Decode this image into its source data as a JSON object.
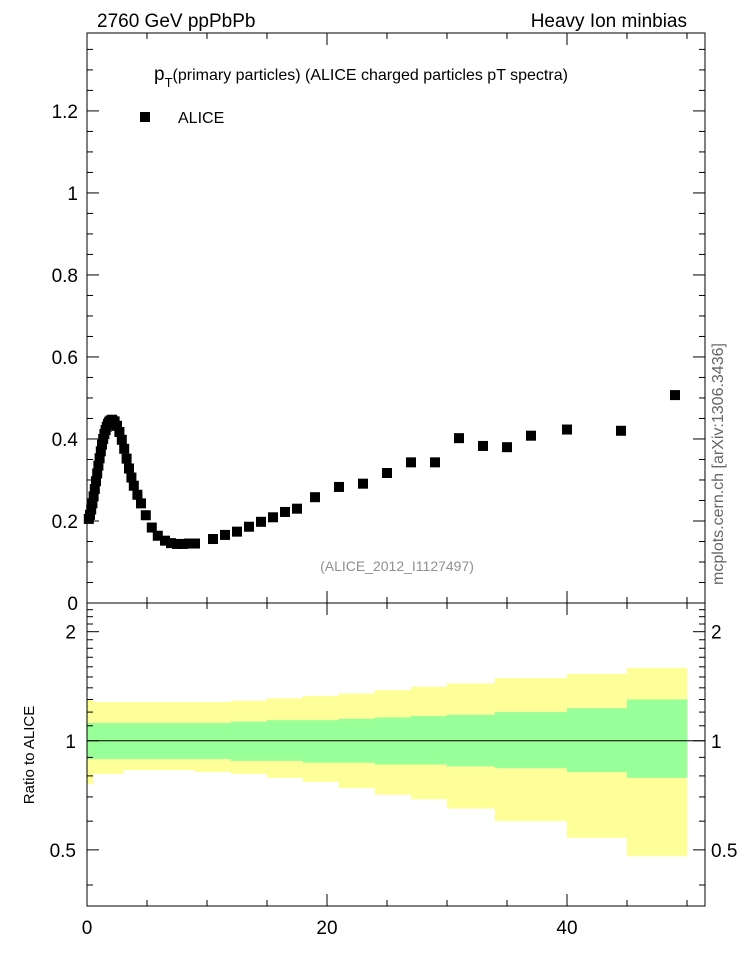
{
  "header": {
    "left": "2760 GeV ppPbPb",
    "right": "Heavy Ion minbias"
  },
  "side_label": "mcplots.cern.ch [arXiv:1306.3436]",
  "chart_data": [
    {
      "type": "scatter",
      "title_main": "p",
      "title_sub": "T",
      "title_rest": "(primary particles) (ALICE charged particles pT spectra)",
      "legend": [
        {
          "name": "ALICE",
          "marker": "square",
          "color": "#000000"
        }
      ],
      "legend_position": "top-left",
      "watermark": "(ALICE_2012_I1127497)",
      "xlim": [
        0,
        51.5
      ],
      "ylim": [
        0,
        1.39
      ],
      "y_ticks": [
        0.2,
        0.4,
        0.6,
        0.8,
        1,
        1.2
      ],
      "y_tick_labels": [
        "0.2",
        "0.4",
        "0.6",
        "0.8",
        "1",
        "1.2"
      ],
      "y_zero_label": "0",
      "series": [
        {
          "name": "ALICE",
          "points": [
            [
              0.15,
              0.205
            ],
            [
              0.25,
              0.215
            ],
            [
              0.35,
              0.228
            ],
            [
              0.45,
              0.243
            ],
            [
              0.55,
              0.26
            ],
            [
              0.65,
              0.278
            ],
            [
              0.75,
              0.297
            ],
            [
              0.85,
              0.316
            ],
            [
              0.95,
              0.335
            ],
            [
              1.05,
              0.353
            ],
            [
              1.15,
              0.37
            ],
            [
              1.25,
              0.386
            ],
            [
              1.35,
              0.4
            ],
            [
              1.45,
              0.412
            ],
            [
              1.55,
              0.422
            ],
            [
              1.65,
              0.43
            ],
            [
              1.75,
              0.437
            ],
            [
              1.85,
              0.442
            ],
            [
              1.95,
              0.445
            ],
            [
              2.1,
              0.447
            ],
            [
              2.3,
              0.443
            ],
            [
              2.5,
              0.432
            ],
            [
              2.7,
              0.417
            ],
            [
              2.9,
              0.398
            ],
            [
              3.1,
              0.376
            ],
            [
              3.3,
              0.352
            ],
            [
              3.5,
              0.328
            ],
            [
              3.7,
              0.306
            ],
            [
              3.9,
              0.286
            ],
            [
              4.2,
              0.264
            ],
            [
              4.5,
              0.243
            ],
            [
              4.9,
              0.214
            ],
            [
              5.4,
              0.184
            ],
            [
              5.9,
              0.164
            ],
            [
              6.5,
              0.152
            ],
            [
              7.0,
              0.146
            ],
            [
              7.5,
              0.144
            ],
            [
              8.0,
              0.144
            ],
            [
              8.5,
              0.145
            ],
            [
              9.0,
              0.145
            ],
            [
              10.5,
              0.156
            ],
            [
              11.5,
              0.166
            ],
            [
              12.5,
              0.174
            ],
            [
              13.5,
              0.186
            ],
            [
              14.5,
              0.198
            ],
            [
              15.5,
              0.209
            ],
            [
              16.5,
              0.222
            ],
            [
              17.5,
              0.23
            ],
            [
              19.0,
              0.258
            ],
            [
              21.0,
              0.283
            ],
            [
              23.0,
              0.291
            ],
            [
              25.0,
              0.317
            ],
            [
              27.0,
              0.343
            ],
            [
              29.0,
              0.343
            ],
            [
              31.0,
              0.402
            ],
            [
              33.0,
              0.383
            ],
            [
              35.0,
              0.38
            ],
            [
              37.0,
              0.408
            ],
            [
              40.0,
              0.423
            ],
            [
              44.5,
              0.42
            ],
            [
              49.0,
              0.507
            ]
          ]
        }
      ]
    },
    {
      "type": "area",
      "ylabel": "Ratio to ALICE",
      "xlim": [
        0,
        51.5
      ],
      "ylim": [
        0.35,
        2.4
      ],
      "x_ticks": [
        0,
        20,
        40
      ],
      "x_tick_labels": [
        "0",
        "20",
        "40"
      ],
      "y_ticks": [
        0.5,
        1,
        2
      ],
      "y_tick_labels": [
        "0.5",
        "1",
        "2"
      ],
      "reference_line": 1,
      "bands": [
        {
          "name": "outer-band",
          "color": "#ffff99",
          "bins": [
            [
              0,
              0.5,
              0.76,
              1.3
            ],
            [
              0.5,
              3,
              0.81,
              1.28
            ],
            [
              3,
              9,
              0.83,
              1.28
            ],
            [
              9,
              12,
              0.82,
              1.28
            ],
            [
              12,
              15,
              0.81,
              1.29
            ],
            [
              15,
              18,
              0.79,
              1.31
            ],
            [
              18,
              21,
              0.77,
              1.33
            ],
            [
              21,
              24,
              0.74,
              1.35
            ],
            [
              24,
              27,
              0.71,
              1.38
            ],
            [
              27,
              30,
              0.69,
              1.41
            ],
            [
              30,
              34,
              0.65,
              1.44
            ],
            [
              34,
              40,
              0.6,
              1.49
            ],
            [
              40,
              45,
              0.54,
              1.53
            ],
            [
              45,
              50,
              0.48,
              1.59
            ]
          ]
        },
        {
          "name": "inner-band",
          "color": "#99ff99",
          "bins": [
            [
              0,
              0.5,
              0.89,
              1.12
            ],
            [
              0.5,
              3,
              0.89,
              1.12
            ],
            [
              3,
              9,
              0.89,
              1.12
            ],
            [
              9,
              12,
              0.89,
              1.12
            ],
            [
              12,
              15,
              0.88,
              1.13
            ],
            [
              15,
              18,
              0.88,
              1.14
            ],
            [
              18,
              21,
              0.87,
              1.14
            ],
            [
              21,
              24,
              0.87,
              1.15
            ],
            [
              24,
              27,
              0.86,
              1.16
            ],
            [
              27,
              30,
              0.86,
              1.17
            ],
            [
              30,
              34,
              0.85,
              1.18
            ],
            [
              34,
              40,
              0.84,
              1.2
            ],
            [
              40,
              45,
              0.82,
              1.23
            ],
            [
              45,
              50,
              0.79,
              1.3
            ]
          ]
        }
      ]
    }
  ]
}
